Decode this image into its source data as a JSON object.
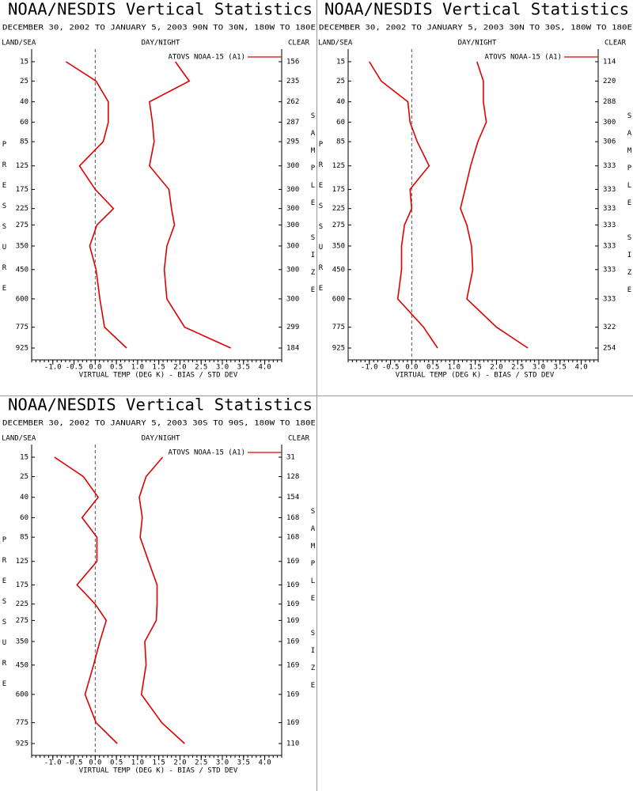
{
  "chart_data": [
    {
      "type": "line",
      "title": "NOAA/NESDIS Vertical Statistics",
      "subtitle": "DECEMBER 30, 2002 TO JANUARY 5, 2003 90N TO 30N, 180W TO 180E",
      "left_header": "LAND/SEA",
      "center_header": "DAY/NIGHT",
      "right_header": "CLEAR",
      "ylabel": "PRESSURE",
      "y2label": "SAMPLE SIZE",
      "xlabel": "VIRTUAL TEMP (DEG K) - BIAS / STD DEV",
      "categories": [
        15,
        25,
        40,
        60,
        85,
        125,
        175,
        225,
        275,
        350,
        450,
        600,
        775,
        925
      ],
      "sample_size": [
        156,
        235,
        262,
        287,
        295,
        300,
        300,
        300,
        300,
        300,
        300,
        300,
        299,
        184
      ],
      "series": [
        {
          "name": "ATOVS NOAA-15 (A1)",
          "color": "#e00000",
          "bias": [
            -0.69,
            0.02,
            0.31,
            0.31,
            0.19,
            -0.37,
            0.0,
            0.43,
            0.04,
            -0.13,
            0.02,
            0.11,
            0.22,
            0.74
          ],
          "std_dev": [
            1.89,
            2.22,
            1.28,
            1.35,
            1.39,
            1.28,
            1.74,
            1.8,
            1.87,
            1.69,
            1.63,
            1.69,
            2.11,
            3.2
          ]
        }
      ],
      "xlim": [
        -1.5,
        4.4
      ],
      "xticks": [
        {
          "value": -1,
          "label": "-1.0"
        },
        -0.5,
        {
          "value": 0,
          "label": "0.0"
        },
        0.5,
        {
          "value": 1,
          "label": "1.0"
        },
        1.5,
        {
          "value": 2,
          "label": "2.0"
        },
        2.5,
        {
          "value": 3,
          "label": "3.0"
        },
        3.5,
        {
          "value": 4,
          "label": "4.0"
        }
      ],
      "zero_line": true
    },
    {
      "type": "line",
      "title": "NOAA/NESDIS Vertical Statistics",
      "subtitle": "DECEMBER 30, 2002 TO JANUARY 5, 2003 30N TO 30S, 180W TO 180E",
      "left_header": "LAND/SEA",
      "center_header": "DAY/NIGHT",
      "right_header": "CLEAR",
      "ylabel": "PRESSURE",
      "y2label": "SAMPLE SIZE",
      "xlabel": "VIRTUAL TEMP (DEG K) - BIAS / STD DEV",
      "categories": [
        15,
        25,
        40,
        60,
        85,
        125,
        175,
        225,
        275,
        350,
        450,
        600,
        775,
        925
      ],
      "sample_size": [
        114,
        220,
        288,
        300,
        306,
        333,
        333,
        333,
        333,
        333,
        333,
        333,
        322,
        254
      ],
      "series": [
        {
          "name": "ATOVS NOAA-15 (A1)",
          "color": "#e00000",
          "bias": [
            -1.0,
            -0.72,
            -0.09,
            -0.04,
            0.13,
            0.41,
            -0.04,
            0.0,
            -0.17,
            -0.24,
            -0.24,
            -0.33,
            0.28,
            0.61
          ],
          "std_dev": [
            1.54,
            1.69,
            1.69,
            1.76,
            1.56,
            1.39,
            1.26,
            1.15,
            1.3,
            1.41,
            1.44,
            1.3,
            2.0,
            2.74
          ]
        }
      ],
      "xlim": [
        -1.5,
        4.4
      ],
      "xticks": [
        {
          "value": -1,
          "label": "-1.0"
        },
        -0.5,
        {
          "value": 0,
          "label": "0.0"
        },
        0.5,
        {
          "value": 1,
          "label": "1.0"
        },
        1.5,
        {
          "value": 2,
          "label": "2.0"
        },
        2.5,
        {
          "value": 3,
          "label": "3.0"
        },
        3.5,
        {
          "value": 4,
          "label": "4.0"
        }
      ],
      "zero_line": true
    },
    {
      "type": "line",
      "title": "NOAA/NESDIS Vertical Statistics",
      "subtitle": "DECEMBER 30, 2002 TO JANUARY 5, 2003 30S TO 90S, 180W TO 180E",
      "left_header": "LAND/SEA",
      "center_header": "DAY/NIGHT",
      "right_header": "CLEAR",
      "ylabel": "PRESSURE",
      "y2label": "SAMPLE SIZE",
      "xlabel": "VIRTUAL TEMP (DEG K) - BIAS / STD DEV",
      "categories": [
        15,
        25,
        40,
        60,
        85,
        125,
        175,
        225,
        275,
        350,
        450,
        600,
        775,
        925
      ],
      "sample_size": [
        31,
        128,
        154,
        168,
        168,
        169,
        169,
        169,
        169,
        169,
        169,
        169,
        169,
        110
      ],
      "series": [
        {
          "name": "ATOVS NOAA-15 (A1)",
          "color": "#e00000",
          "bias": [
            -0.96,
            -0.28,
            0.07,
            -0.31,
            0.04,
            0.04,
            -0.43,
            0.0,
            0.26,
            0.11,
            -0.04,
            -0.24,
            0.02,
            0.52
          ],
          "std_dev": [
            1.59,
            1.2,
            1.04,
            1.11,
            1.06,
            1.26,
            1.46,
            1.46,
            1.44,
            1.17,
            1.2,
            1.09,
            1.57,
            2.11
          ]
        }
      ],
      "xlim": [
        -1.5,
        4.4
      ],
      "xticks": [
        {
          "value": -1,
          "label": "-1.0"
        },
        -0.5,
        {
          "value": 0,
          "label": "0.0"
        },
        0.5,
        {
          "value": 1,
          "label": "1.0"
        },
        1.5,
        {
          "value": 2,
          "label": "2.0"
        },
        2.5,
        {
          "value": 3,
          "label": "3.0"
        },
        3.5,
        {
          "value": 4,
          "label": "4.0"
        }
      ],
      "zero_line": true
    }
  ]
}
